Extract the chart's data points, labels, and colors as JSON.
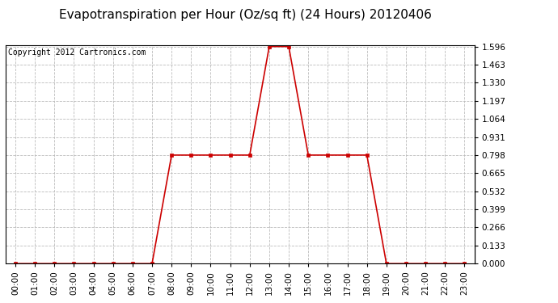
{
  "title": "Evapotranspiration per Hour (Oz/sq ft) (24 Hours) 20120406",
  "copyright": "Copyright 2012 Cartronics.com",
  "hours": [
    0,
    1,
    2,
    3,
    4,
    5,
    6,
    7,
    8,
    9,
    10,
    11,
    12,
    13,
    14,
    15,
    16,
    17,
    18,
    19,
    20,
    21,
    22,
    23
  ],
  "values": [
    0.0,
    0.0,
    0.0,
    0.0,
    0.0,
    0.0,
    0.0,
    0.0,
    0.798,
    0.798,
    0.798,
    0.798,
    0.798,
    1.596,
    1.596,
    0.798,
    0.798,
    0.798,
    0.798,
    0.0,
    0.0,
    0.0,
    0.0,
    0.0
  ],
  "ymin": 0.0,
  "ymax": 1.596,
  "yticks": [
    0.0,
    0.133,
    0.266,
    0.399,
    0.532,
    0.665,
    0.798,
    0.931,
    1.064,
    1.197,
    1.33,
    1.463,
    1.596
  ],
  "line_color": "#cc0000",
  "marker_color": "#cc0000",
  "bg_color": "#ffffff",
  "plot_bg_color": "#ffffff",
  "grid_color": "#bbbbbb",
  "title_fontsize": 11,
  "copyright_fontsize": 7,
  "tick_label_fontsize": 7.5,
  "hour_labels": [
    "00:00",
    "01:00",
    "02:00",
    "03:00",
    "04:00",
    "05:00",
    "06:00",
    "07:00",
    "08:00",
    "09:00",
    "10:00",
    "11:00",
    "12:00",
    "13:00",
    "14:00",
    "15:00",
    "16:00",
    "17:00",
    "18:00",
    "19:00",
    "20:00",
    "21:00",
    "22:00",
    "23:00"
  ]
}
